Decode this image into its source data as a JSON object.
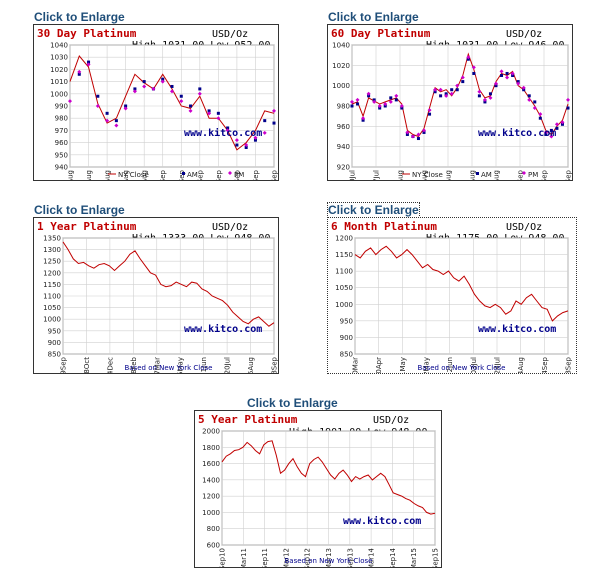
{
  "link_label": "Click to Enlarge",
  "colors": {
    "title": "#c00000",
    "line": "#c00000",
    "am": "#00008b",
    "pm": "#cc00cc",
    "watermark": "#00008b",
    "link": "#1f4e79",
    "grid": "#d0d0d0"
  },
  "charts": [
    {
      "id": "30day",
      "title": "30 Day Platinum",
      "unit": "USD/Oz",
      "high_low": "High 1031.00 Low 952.00",
      "watermark": "www.kitco.com",
      "legend": {
        "line": "NY Close",
        "am": "AM",
        "pm": "PM"
      },
      "footer": "",
      "chart_data": {
        "type": "line",
        "title": "30 Day Platinum",
        "ylabel": "USD/Oz",
        "ylim": [
          940,
          1040
        ],
        "yticks": [
          940,
          950,
          960,
          970,
          980,
          990,
          1000,
          1010,
          1020,
          1030,
          1040
        ],
        "xticks": [
          "19Aug",
          "21Aug",
          "25Aug",
          "27Aug",
          "31Aug",
          "02Sep",
          "04Sep",
          "08Sep",
          "10Sep",
          "14Sep",
          "16Sep",
          "18Sep"
        ],
        "series": [
          {
            "name": "NY Close",
            "values": [
              1010,
              1031,
              1022,
              992,
              976,
              980,
              998,
              1016,
              1009,
              1004,
              1016,
              1004,
              990,
              988,
              998,
              980,
              980,
              970,
              954,
              960,
              970,
              986,
              984
            ]
          },
          {
            "name": "AM",
            "values": [
              null,
              1016,
              1026,
              998,
              984,
              978,
              990,
              1004,
              1010,
              1004,
              1012,
              1006,
              998,
              990,
              1004,
              986,
              984,
              972,
              958,
              956,
              962,
              978,
              976
            ]
          },
          {
            "name": "PM",
            "values": [
              994,
              1018,
              1024,
              990,
              978,
              974,
              988,
              1002,
              1006,
              1004,
              1010,
              1002,
              994,
              986,
              1000,
              984,
              980,
              970,
              962,
              958,
              964,
              968,
              986
            ]
          }
        ]
      }
    },
    {
      "id": "60day",
      "title": "60 Day Platinum",
      "unit": "USD/Oz",
      "high_low": "High 1031.00 Low 946.00",
      "watermark": "www.kitco.com",
      "legend": {
        "line": "NY Close",
        "am": "AM",
        "pm": "PM"
      },
      "footer": "",
      "chart_data": {
        "type": "line",
        "title": "60 Day Platinum",
        "ylabel": "USD/Oz",
        "ylim": [
          920,
          1040
        ],
        "yticks": [
          920,
          940,
          960,
          980,
          1000,
          1020,
          1040
        ],
        "xticks": [
          "20Jul",
          "27Jul",
          "03Aug",
          "10Aug",
          "17Aug",
          "24Aug",
          "31Aug",
          "07Sep",
          "14Sep",
          "18Sep"
        ],
        "series": [
          {
            "name": "NY Close",
            "values": [
              982,
              984,
              970,
              988,
              985,
              982,
              984,
              986,
              988,
              982,
              956,
              952,
              950,
              958,
              978,
              998,
              994,
              996,
              990,
              998,
              1010,
              1031,
              1016,
              996,
              988,
              990,
              1004,
              1012,
              1010,
              1014,
              1000,
              996,
              988,
              980,
              970,
              956,
              952,
              960,
              966,
              982
            ]
          },
          {
            "name": "AM",
            "values": [
              980,
              982,
              966,
              990,
              986,
              978,
              980,
              988,
              986,
              978,
              952,
              950,
              948,
              954,
              972,
              994,
              990,
              992,
              996,
              996,
              1004,
              1026,
              1012,
              990,
              984,
              992,
              1000,
              1010,
              1012,
              1010,
              1004,
              996,
              990,
              984,
              968,
              952,
              956,
              958,
              962,
              978
            ]
          },
          {
            "name": "PM",
            "values": [
              984,
              986,
              968,
              992,
              984,
              980,
              982,
              984,
              990,
              980,
              954,
              950,
              952,
              956,
              976,
              996,
              996,
              990,
              992,
              1000,
              1008,
              1028,
              1018,
              994,
              986,
              988,
              1002,
              1014,
              1008,
              1012,
              1002,
              998,
              986,
              978,
              972,
              954,
              950,
              962,
              964,
              986
            ]
          }
        ]
      }
    },
    {
      "id": "1year",
      "title": "1 Year Platinum",
      "unit": "USD/Oz",
      "high_low": "High 1333.00 Low 948.00",
      "watermark": "www.kitco.com",
      "legend": null,
      "footer": "Based on New York Close",
      "chart_data": {
        "type": "line",
        "title": "1 Year Platinum",
        "ylabel": "USD/Oz",
        "ylim": [
          850,
          1350
        ],
        "yticks": [
          850,
          900,
          950,
          1000,
          1050,
          1100,
          1150,
          1200,
          1250,
          1300,
          1350
        ],
        "xticks": [
          "19Sep",
          "28Oct",
          "04Dec",
          "18Feb",
          "27Mar",
          "05May",
          "11Jun",
          "20Jul",
          "26Aug",
          "18Sep"
        ],
        "series": [
          {
            "name": "NY Close",
            "values": [
              1333,
              1300,
              1260,
              1240,
              1245,
              1230,
              1220,
              1235,
              1240,
              1230,
              1210,
              1230,
              1250,
              1280,
              1295,
              1260,
              1230,
              1200,
              1190,
              1150,
              1140,
              1145,
              1160,
              1150,
              1140,
              1160,
              1155,
              1130,
              1120,
              1100,
              1090,
              1080,
              1060,
              1030,
              1010,
              990,
              980,
              1000,
              1010,
              990,
              970,
              985
            ]
          }
        ]
      }
    },
    {
      "id": "6month",
      "title": "6 Month Platinum",
      "unit": "USD/Oz",
      "high_low": "High 1175.00 Low 948.00",
      "watermark": "www.kitco.com",
      "legend": null,
      "footer": "Based on New York Close",
      "chart_data": {
        "type": "line",
        "title": "6 Month Platinum",
        "ylabel": "USD/Oz",
        "ylim": [
          850,
          1200
        ],
        "yticks": [
          850,
          900,
          950,
          1000,
          1050,
          1100,
          1150,
          1200
        ],
        "xticks": [
          "20Mar",
          "10Apr",
          "01May",
          "22May",
          "12Jun",
          "03Jul",
          "24Jul",
          "14Aug",
          "04Sep",
          "18Sep"
        ],
        "series": [
          {
            "name": "NY Close",
            "values": [
              1150,
              1140,
              1160,
              1170,
              1150,
              1165,
              1175,
              1160,
              1140,
              1150,
              1165,
              1150,
              1130,
              1110,
              1120,
              1105,
              1100,
              1090,
              1100,
              1080,
              1070,
              1085,
              1060,
              1030,
              1010,
              995,
              990,
              1000,
              990,
              970,
              980,
              1010,
              1000,
              1020,
              1030,
              1010,
              990,
              985,
              950,
              965,
              975,
              980
            ]
          }
        ]
      }
    },
    {
      "id": "5year",
      "title": "5 Year Platinum",
      "unit": "USD/Oz",
      "high_low": "High 1901.00 Low 948.00",
      "watermark": "www.kitco.com",
      "legend": null,
      "footer": "Based on New York Close",
      "chart_data": {
        "type": "line",
        "title": "5 Year Platinum",
        "ylabel": "USD/Oz",
        "ylim": [
          600,
          2000
        ],
        "yticks": [
          600,
          800,
          1000,
          1200,
          1400,
          1600,
          1800,
          2000
        ],
        "xticks": [
          "Sep10",
          "Mar11",
          "Sep11",
          "Mar12",
          "Sep12",
          "Mar13",
          "Sep13",
          "Mar14",
          "Sep14",
          "Mar15",
          "Sep15"
        ],
        "series": [
          {
            "name": "NY Close",
            "values": [
              1620,
              1690,
              1720,
              1760,
              1770,
              1800,
              1860,
              1820,
              1760,
              1720,
              1830,
              1870,
              1880,
              1700,
              1480,
              1520,
              1600,
              1660,
              1560,
              1480,
              1440,
              1600,
              1650,
              1680,
              1620,
              1540,
              1460,
              1410,
              1480,
              1520,
              1460,
              1380,
              1440,
              1410,
              1440,
              1460,
              1400,
              1440,
              1480,
              1440,
              1340,
              1240,
              1220,
              1200,
              1170,
              1150,
              1110,
              1080,
              1060,
              1000,
              980,
              990
            ]
          }
        ]
      }
    }
  ]
}
